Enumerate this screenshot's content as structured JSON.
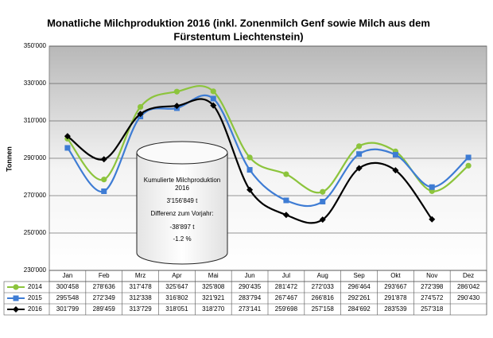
{
  "chart_data": {
    "type": "line",
    "title": [
      "Monatliche Milchproduktion 2016 (inkl. Zonenmilch Genf sowie Milch aus dem",
      "Fürstentum Liechtenstein)"
    ],
    "y_label": "Tonnen",
    "categories": [
      "Jan",
      "Feb",
      "Mrz",
      "Apr",
      "Mai",
      "Jun",
      "Jul",
      "Aug",
      "Sep",
      "Okt",
      "Nov",
      "Dez"
    ],
    "ylim": [
      230000,
      350000
    ],
    "yticks": [
      {
        "value": 230000,
        "label": "230'000"
      },
      {
        "value": 250000,
        "label": "250'000"
      },
      {
        "value": 270000,
        "label": "270'000"
      },
      {
        "value": 290000,
        "label": "290'000"
      },
      {
        "value": 310000,
        "label": "310'000"
      },
      {
        "value": 330000,
        "label": "330'000"
      },
      {
        "value": 350000,
        "label": "350'000"
      }
    ],
    "grid": true,
    "series": [
      {
        "name": "2014",
        "color": "#8cc43c",
        "marker": "circle",
        "values": [
          300458,
          278636,
          317478,
          325647,
          325808,
          290435,
          281472,
          272033,
          296464,
          293667,
          272398,
          286042
        ],
        "value_labels": [
          "300'458",
          "278'636",
          "317'478",
          "325'647",
          "325'808",
          "290'435",
          "281'472",
          "272'033",
          "296'464",
          "293'667",
          "272'398",
          "286'042"
        ]
      },
      {
        "name": "2015",
        "color": "#3e7cd4",
        "marker": "square",
        "values": [
          295548,
          272349,
          312338,
          316802,
          321921,
          283794,
          267467,
          266816,
          292261,
          291878,
          274572,
          290430
        ],
        "value_labels": [
          "295'548",
          "272'349",
          "312'338",
          "316'802",
          "321'921",
          "283'794",
          "267'467",
          "266'816",
          "292'261",
          "291'878",
          "274'572",
          "290'430"
        ]
      },
      {
        "name": "2016",
        "color": "#000000",
        "marker": "diamond",
        "values": [
          301799,
          289459,
          313729,
          318051,
          318270,
          273141,
          259698,
          257158,
          284692,
          283539,
          257318,
          null
        ],
        "value_labels": [
          "301'799",
          "289'459",
          "313'729",
          "318'051",
          "318'270",
          "273'141",
          "259'698",
          "257'158",
          "284'692",
          "283'539",
          "257'318",
          null
        ]
      }
    ],
    "annotation": [
      "Kumulierte Milchproduktion",
      "2016",
      "3'156'849 t",
      "Differenz zum Vorjahr:",
      "-38'897 t",
      "-1.2 %"
    ]
  }
}
